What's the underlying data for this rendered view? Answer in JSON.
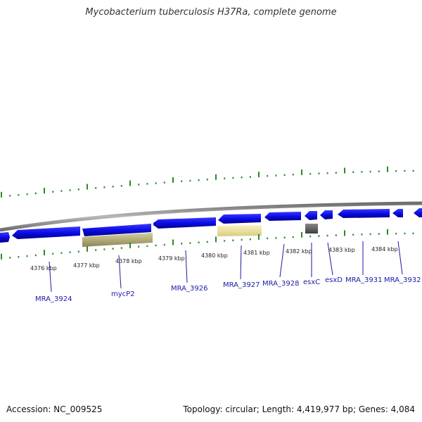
{
  "title": "Mycobacterium tuberculosis H37Ra, complete genome",
  "footer": {
    "accession": "Accession: NC_009525",
    "summary": "Topology: circular; Length: 4,419,977 bp; Genes: 4,084"
  },
  "colors": {
    "backbone": "#8a8a8a",
    "forward_gene": "#0c0ce6",
    "reverse_gene": "#0c0ce6",
    "rna_gene_olive": "#bfba80",
    "rna_gene_yellow": "#f5eaa0",
    "other_gene_gray": "#6b6b6b",
    "tick_green": "#2a8a2a",
    "label_blue": "#1a1aa8"
  },
  "ruler_labels": [
    "4376 kbp",
    "4377 kbp",
    "4378 kbp",
    "4379 kbp",
    "4380 kbp",
    "4381 kbp",
    "4382 kbp",
    "4383 kbp",
    "4384 kbp"
  ],
  "gene_labels": [
    "MRA_3924",
    "mycP2",
    "MRA_3926",
    "MRA_3927",
    "MRA_3928",
    "esxC",
    "esxD",
    "MRA_3931",
    "MRA_3932"
  ]
}
